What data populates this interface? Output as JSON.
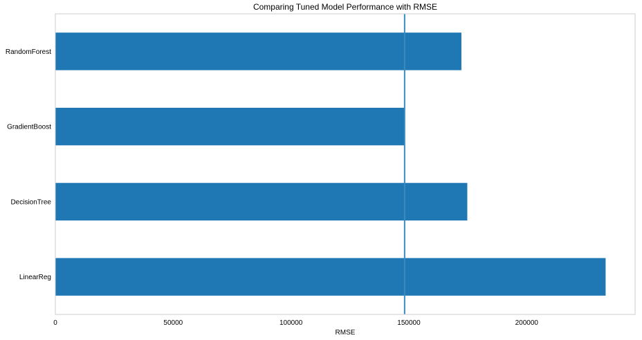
{
  "chart_data": {
    "type": "bar",
    "orientation": "horizontal",
    "title": "Comparing Tuned Model Performance with RMSE",
    "xlabel": "RMSE",
    "ylabel": "",
    "categories": [
      "LinearReg",
      "DecisionTree",
      "GradientBoost",
      "RandomForest"
    ],
    "values": [
      233500,
      174800,
      148200,
      172300
    ],
    "xlim": [
      0,
      246000
    ],
    "xticks": [
      0,
      50000,
      100000,
      150000,
      200000
    ],
    "reference_line": {
      "axis": "x",
      "value": 148200
    },
    "grid": false,
    "legend": false
  },
  "colors": {
    "bar": "#1f77b4",
    "reference_line": "#3a8bbf",
    "frame": "#cccccc"
  }
}
